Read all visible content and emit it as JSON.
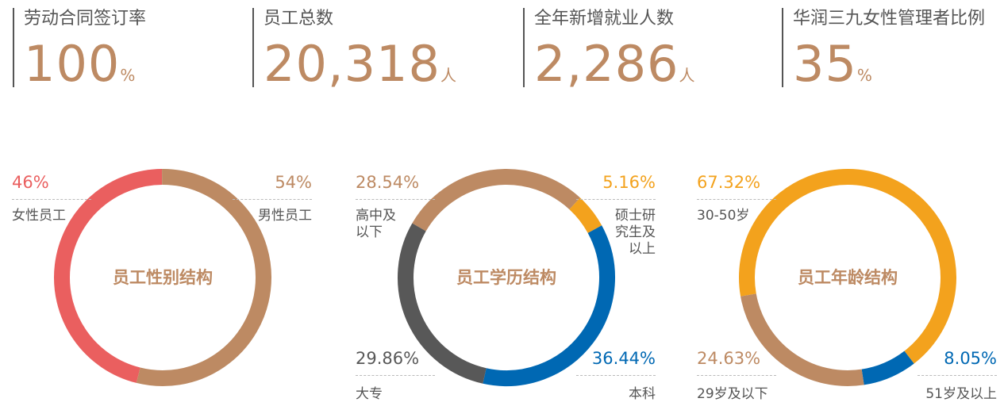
{
  "stats": [
    {
      "label": "劳动合同签订率",
      "value": "100",
      "unit": "%"
    },
    {
      "label": "员工总数",
      "value": "20,318",
      "unit": "人"
    },
    {
      "label": "全年新增就业人数",
      "value": "2,286",
      "unit": "人"
    },
    {
      "label": "华润三九女性管理者比例",
      "value": "35",
      "unit": "%"
    }
  ],
  "chart_data": [
    {
      "type": "pie",
      "title": "员工性别结构",
      "categories": [
        "女性员工",
        "男性员工"
      ],
      "values": [
        46,
        54
      ],
      "value_labels": [
        "46%",
        "54%"
      ],
      "colors": [
        "#ea5f5f",
        "#bd8a63"
      ],
      "startangle": 194
    },
    {
      "type": "pie",
      "title": "员工学历结构",
      "categories": [
        "高中及以下",
        "硕士研究生及以上",
        "本科",
        "大专"
      ],
      "values": [
        28.54,
        5.16,
        36.44,
        29.86
      ],
      "value_labels": [
        "28.54%",
        "5.16%",
        "36.44%",
        "29.86%"
      ],
      "colors": [
        "#bd8a63",
        "#f3a21d",
        "#0068b3",
        "#585858"
      ],
      "startangle": -60
    },
    {
      "type": "pie",
      "title": "员工年龄结构",
      "categories": [
        "30-50岁",
        "51岁及以上",
        "29岁及以下"
      ],
      "values": [
        67.32,
        8.05,
        24.63
      ],
      "value_labels": [
        "67.32%",
        "8.05%",
        "24.63%"
      ],
      "colors": [
        "#f3a21d",
        "#0068b3",
        "#bd8a63"
      ],
      "startangle": 260
    }
  ]
}
